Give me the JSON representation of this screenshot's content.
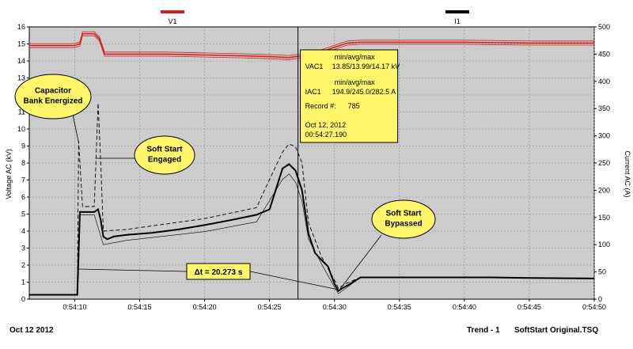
{
  "chart_data": {
    "type": "line",
    "legend": [
      {
        "name": "V1",
        "color": "#d42020"
      },
      {
        "name": "I1",
        "color": "#000000"
      }
    ],
    "x": {
      "ticks": [
        "0:54:10",
        "0:54:15",
        "0:54:20",
        "0:54:25",
        "0:54:30",
        "0:54:35",
        "0:54:40",
        "0:54:45",
        "0:54:50"
      ],
      "range_seconds_after_0_54_00": [
        6.5,
        50
      ]
    },
    "y_left": {
      "label": "Voltage AC (kV)",
      "range": [
        0,
        16
      ],
      "ticks": [
        "0",
        "1",
        "2",
        "3",
        "4",
        "5",
        "6",
        "7",
        "8",
        "9",
        "10",
        "11",
        "12",
        "13",
        "14",
        "15",
        "16"
      ]
    },
    "y_right": {
      "label": "Current AC (A)",
      "range": [
        0,
        500
      ],
      "ticks": [
        "0",
        "50",
        "100",
        "150",
        "200",
        "250",
        "300",
        "350",
        "400",
        "450",
        "500"
      ]
    },
    "series": [
      {
        "name": "V1",
        "axis": "left",
        "color": "#d42020",
        "points": [
          [
            6.5,
            14.9
          ],
          [
            10.0,
            14.9
          ],
          [
            10.4,
            15.0
          ],
          [
            10.6,
            15.6
          ],
          [
            11.5,
            15.6
          ],
          [
            11.9,
            15.3
          ],
          [
            12.3,
            14.4
          ],
          [
            12.7,
            14.4
          ],
          [
            14.0,
            14.4
          ],
          [
            17.0,
            14.4
          ],
          [
            20.0,
            14.35
          ],
          [
            23.0,
            14.3
          ],
          [
            25.0,
            14.25
          ],
          [
            26.5,
            14.2
          ],
          [
            27.0,
            14.25
          ],
          [
            28.5,
            14.4
          ],
          [
            30.0,
            14.8
          ],
          [
            31.0,
            15.05
          ],
          [
            32.0,
            15.1
          ],
          [
            36.0,
            15.1
          ],
          [
            40.0,
            15.1
          ],
          [
            45.0,
            15.05
          ],
          [
            50.0,
            15.05
          ]
        ]
      },
      {
        "name": "I1",
        "axis": "right",
        "color": "#000000",
        "points_avg": [
          [
            6.5,
            8
          ],
          [
            10.2,
            8
          ],
          [
            10.4,
            160
          ],
          [
            11.5,
            160
          ],
          [
            11.8,
            165
          ],
          [
            12.0,
            145
          ],
          [
            12.2,
            115
          ],
          [
            12.5,
            110
          ],
          [
            13.0,
            115
          ],
          [
            14.0,
            118
          ],
          [
            16.0,
            122
          ],
          [
            18.0,
            128
          ],
          [
            20.0,
            136
          ],
          [
            22.0,
            145
          ],
          [
            24.0,
            155
          ],
          [
            25.0,
            165
          ],
          [
            26.0,
            240
          ],
          [
            26.5,
            248
          ],
          [
            27.0,
            236
          ],
          [
            27.5,
            200
          ],
          [
            28.0,
            120
          ],
          [
            28.5,
            85
          ],
          [
            29.0,
            72
          ],
          [
            29.5,
            60
          ],
          [
            30.0,
            28
          ],
          [
            30.3,
            15
          ],
          [
            30.6,
            20
          ],
          [
            31.0,
            25
          ],
          [
            32.0,
            40
          ],
          [
            33.0,
            40
          ],
          [
            38.0,
            40
          ],
          [
            42.0,
            40
          ],
          [
            45.0,
            39
          ],
          [
            50.0,
            38
          ]
        ],
        "points_min": [
          [
            10.2,
            8
          ],
          [
            10.4,
            155
          ],
          [
            11.5,
            155
          ],
          [
            12.2,
            100
          ],
          [
            14.0,
            108
          ],
          [
            20.0,
            124
          ],
          [
            24.0,
            142
          ],
          [
            26.0,
            220
          ],
          [
            26.5,
            230
          ],
          [
            27.0,
            215
          ],
          [
            27.5,
            180
          ],
          [
            28.0,
            110
          ],
          [
            29.0,
            65
          ],
          [
            30.0,
            22
          ],
          [
            30.3,
            10
          ],
          [
            31.0,
            22
          ],
          [
            32.0,
            40
          ]
        ],
        "points_max": [
          [
            10.2,
            8
          ],
          [
            10.3,
            290
          ],
          [
            10.6,
            170
          ],
          [
            11.5,
            170
          ],
          [
            11.8,
            360
          ],
          [
            12.0,
            250
          ],
          [
            12.2,
            125
          ],
          [
            14.0,
            128
          ],
          [
            20.0,
            148
          ],
          [
            24.0,
            168
          ],
          [
            25.0,
            220
          ],
          [
            26.0,
            270
          ],
          [
            26.5,
            285
          ],
          [
            27.0,
            280
          ],
          [
            27.5,
            250
          ],
          [
            28.0,
            140
          ],
          [
            29.0,
            78
          ],
          [
            30.0,
            35
          ],
          [
            30.3,
            20
          ],
          [
            31.0,
            30
          ],
          [
            32.0,
            40
          ]
        ]
      }
    ],
    "annotations": [
      {
        "text": [
          "Capacitor",
          "Bank Energized"
        ]
      },
      {
        "text": [
          "Soft Start",
          "Engaged"
        ]
      },
      {
        "text": [
          "Soft Start",
          "Bypassed"
        ]
      },
      {
        "text": [
          "Δt = 20.273 s"
        ]
      }
    ],
    "cursor": {
      "x": 27.19
    },
    "tooltip": {
      "lines": [
        "min/avg/max",
        "VAC1",
        "13.85/13.99/14.17 kV",
        "min/avg/max",
        "IAC1",
        "194.9/245.0/282.5 A",
        "Record #:",
        "785",
        "Oct 12, 2012",
        "00:54:27.190"
      ]
    },
    "grid": true
  },
  "footer": {
    "date": "Oct 12 2012",
    "trend": "Trend - 1",
    "file": "SoftStart Original.TSQ"
  }
}
